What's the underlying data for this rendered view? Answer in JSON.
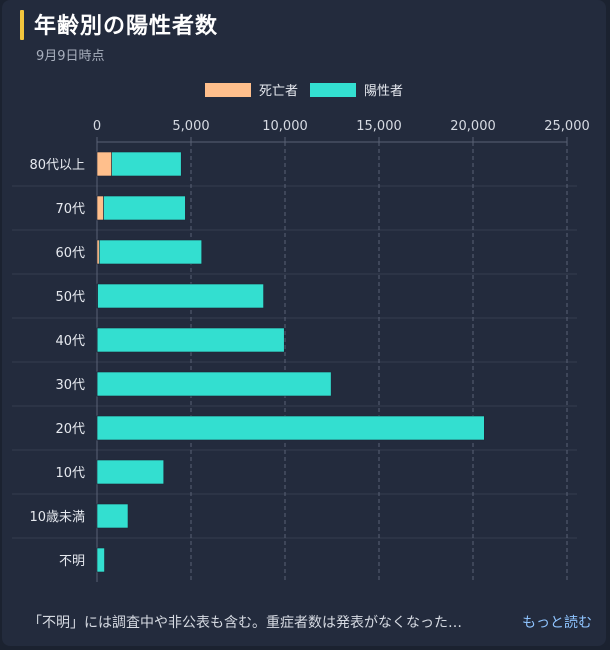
{
  "card": {
    "title": "年齢別の陽性者数",
    "subtitle": "9月9日時点",
    "footer_note": "「不明」には調査中や非公表も含む。重症者数は発表がなくなった…",
    "more_link": "もっと読む"
  },
  "colors": {
    "deaths": "#ffbf8c",
    "positives": "#33dfd0",
    "accent": "#f2c53d"
  },
  "chart_data": {
    "type": "bar",
    "orientation": "horizontal",
    "stacked": true,
    "xlim": [
      0,
      25000
    ],
    "xticks": [
      "0",
      "5,000",
      "10,000",
      "15,000",
      "20,000",
      "25,000"
    ],
    "xtick_values": [
      0,
      5000,
      10000,
      15000,
      20000,
      25000
    ],
    "grid": true,
    "legend_position": "top-center",
    "categories": [
      "80代以上",
      "70代",
      "60代",
      "50代",
      "40代",
      "30代",
      "20代",
      "10代",
      "10歳未満",
      "不明"
    ],
    "series": [
      {
        "name": "死亡者",
        "values": [
          780,
          350,
          120,
          30,
          10,
          5,
          2,
          0,
          0,
          0
        ]
      },
      {
        "name": "陽性者",
        "values": [
          3700,
          4350,
          5450,
          8830,
          9950,
          12450,
          20600,
          3550,
          1650,
          400
        ]
      }
    ]
  }
}
